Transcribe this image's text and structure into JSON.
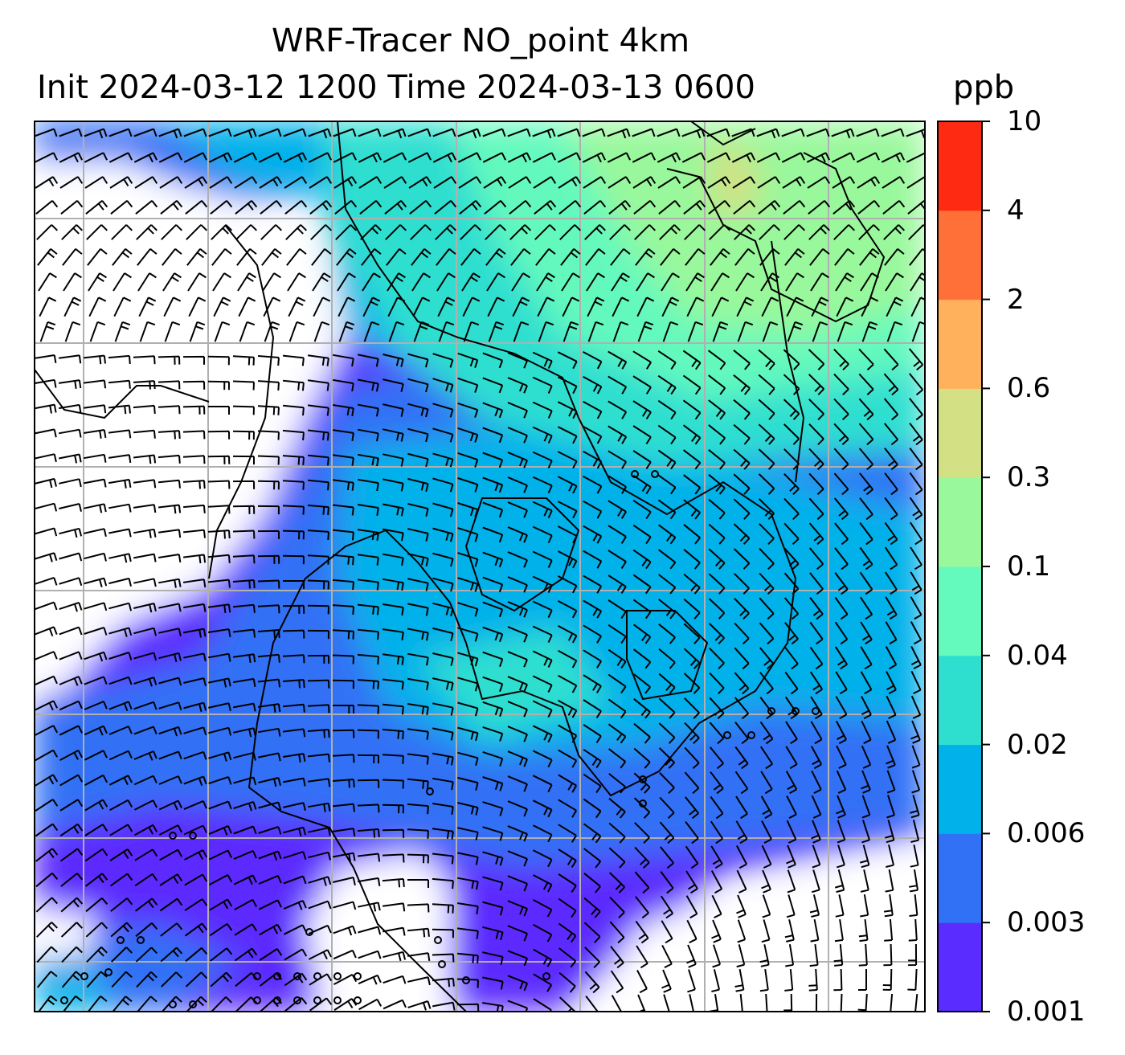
{
  "title_line1": "WRF-Tracer NO_point 4km",
  "title_line2": "Init 2024-03-12 1200 Time 2024-03-13 0600",
  "units": "ppb",
  "colorbar": {
    "levels": [
      "0.001",
      "0.003",
      "0.006",
      "0.02",
      "0.04",
      "0.1",
      "0.3",
      "0.6",
      "2",
      "4",
      "10"
    ],
    "colors": [
      "#5b2cff",
      "#3171f5",
      "#00b1ea",
      "#2edfd0",
      "#64f9bd",
      "#99f89b",
      "#d3e083",
      "#ffb15c",
      "#ff7038",
      "#ff2a12"
    ]
  },
  "map": {
    "background": "#ffffff",
    "gridline_color": "#b0b0b0",
    "coastline_color": "#000000",
    "barb_color": "#000000"
  }
}
